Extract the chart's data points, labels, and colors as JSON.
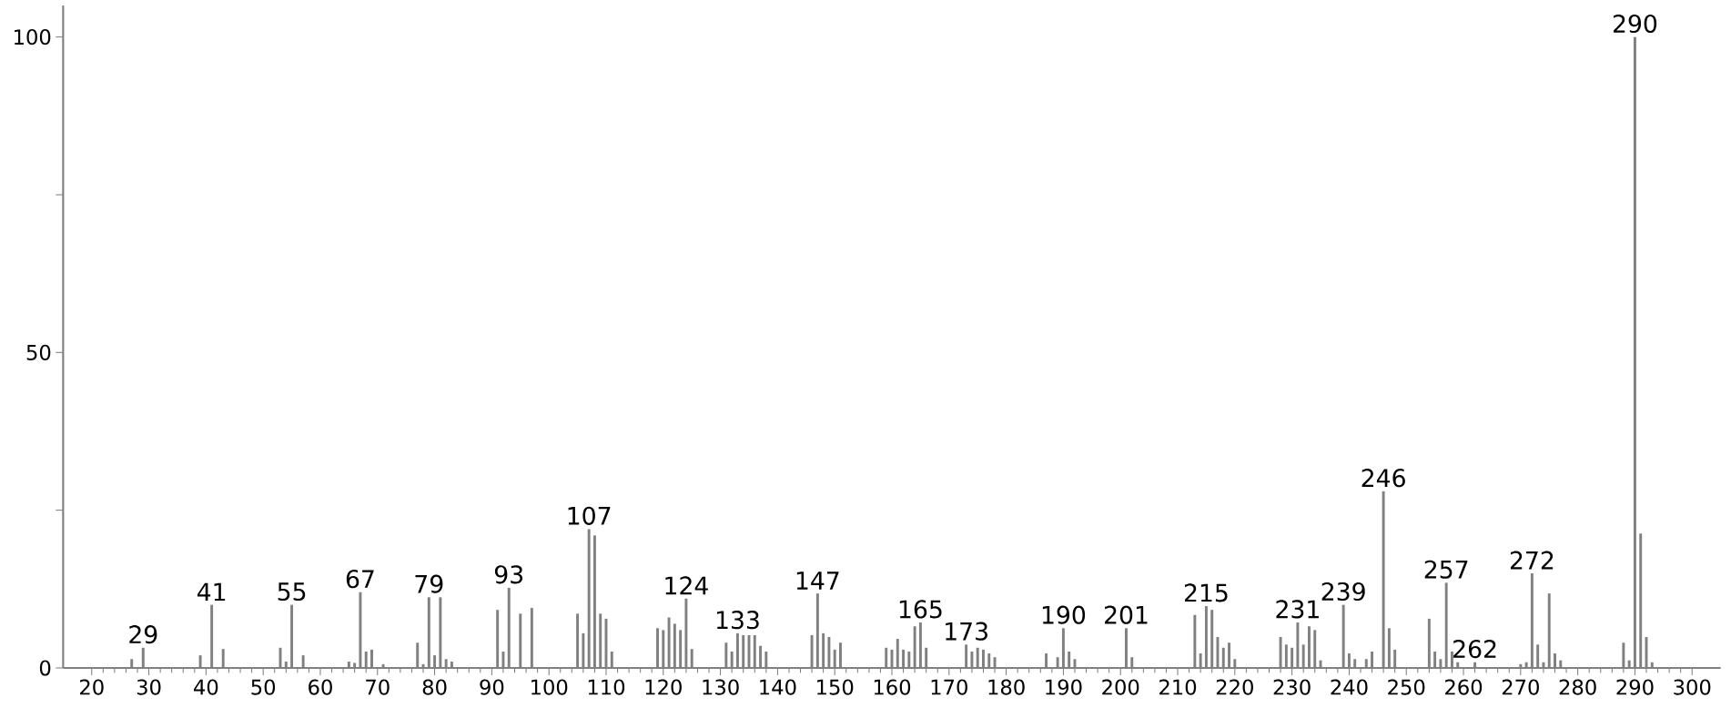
{
  "chart_data": {
    "type": "bar",
    "color": "#808080",
    "x": [
      27,
      29,
      39,
      41,
      43,
      53,
      54,
      55,
      57,
      65,
      66,
      67,
      68,
      69,
      71,
      77,
      78,
      79,
      80,
      81,
      82,
      83,
      91,
      92,
      93,
      95,
      97,
      105,
      106,
      107,
      108,
      109,
      110,
      111,
      119,
      120,
      121,
      122,
      123,
      124,
      125,
      131,
      132,
      133,
      134,
      135,
      136,
      137,
      138,
      146,
      147,
      148,
      149,
      150,
      151,
      159,
      160,
      161,
      162,
      163,
      164,
      165,
      166,
      173,
      174,
      175,
      176,
      177,
      178,
      187,
      189,
      190,
      191,
      192,
      201,
      202,
      213,
      214,
      215,
      216,
      217,
      218,
      219,
      220,
      228,
      229,
      230,
      231,
      232,
      233,
      234,
      235,
      239,
      240,
      241,
      243,
      244,
      246,
      247,
      248,
      254,
      255,
      256,
      257,
      258,
      259,
      262,
      270,
      271,
      272,
      273,
      274,
      275,
      276,
      277,
      288,
      289,
      290,
      291,
      292,
      293
    ],
    "values": [
      1.4,
      3.2,
      2,
      10,
      3,
      3.2,
      1,
      10,
      2,
      1,
      0.8,
      12,
      2.6,
      2.9,
      0.6,
      4,
      0.6,
      11.2,
      2,
      11.2,
      1.4,
      1,
      9.2,
      2.6,
      12.7,
      8.6,
      9.5,
      8.6,
      5.5,
      22,
      21,
      8.6,
      7.8,
      2.6,
      6.3,
      6,
      8,
      7,
      6,
      11,
      3,
      4,
      2.6,
      5.5,
      5.2,
      5.2,
      5.2,
      3.5,
      2.6,
      5.2,
      11.8,
      5.5,
      4.9,
      2.9,
      4,
      3.2,
      2.9,
      4.6,
      2.9,
      2.6,
      6.6,
      7.2,
      3.2,
      3.7,
      2.6,
      3.2,
      2.9,
      2.3,
      1.7,
      2.3,
      1.7,
      6.3,
      2.6,
      1.4,
      6.3,
      1.7,
      8.4,
      2.3,
      9.8,
      9.2,
      4.9,
      3.2,
      4,
      1.4,
      4.9,
      3.7,
      3.2,
      7.2,
      3.7,
      6.6,
      6,
      1.2,
      10,
      2.3,
      1.4,
      1.4,
      2.6,
      28,
      6.3,
      2.9,
      7.8,
      2.6,
      1.4,
      13.5,
      2.6,
      0.9,
      0.9,
      0.6,
      0.9,
      15,
      3.7,
      0.9,
      11.8,
      2.3,
      1.2,
      4,
      1.2,
      100,
      21.3,
      4.9,
      0.9
    ],
    "xlim": [
      15,
      305
    ],
    "ylim": [
      0,
      105
    ],
    "xticks": [
      20,
      30,
      40,
      50,
      60,
      70,
      80,
      90,
      100,
      110,
      120,
      130,
      140,
      150,
      160,
      170,
      180,
      190,
      200,
      210,
      220,
      230,
      240,
      250,
      260,
      270,
      280,
      290,
      300
    ],
    "yticks": [
      0,
      {
        "value": 25,
        "label": null
      },
      50,
      {
        "value": 75,
        "label": null
      },
      100
    ],
    "annotations": [
      {
        "text": "29",
        "x": 29,
        "y": 3.2
      },
      {
        "text": "41",
        "x": 41,
        "y": 10
      },
      {
        "text": "55",
        "x": 55,
        "y": 10
      },
      {
        "text": "67",
        "x": 67,
        "y": 12
      },
      {
        "text": "79",
        "x": 79,
        "y": 11.2
      },
      {
        "text": "93",
        "x": 93,
        "y": 12.7
      },
      {
        "text": "107",
        "x": 107,
        "y": 22
      },
      {
        "text": "124",
        "x": 124,
        "y": 11
      },
      {
        "text": "133",
        "x": 133,
        "y": 5.5
      },
      {
        "text": "147",
        "x": 147,
        "y": 11.8
      },
      {
        "text": "165",
        "x": 165,
        "y": 7.2
      },
      {
        "text": "173",
        "x": 173,
        "y": 3.7
      },
      {
        "text": "190",
        "x": 190,
        "y": 6.3
      },
      {
        "text": "201",
        "x": 201,
        "y": 6.3
      },
      {
        "text": "215",
        "x": 215,
        "y": 9.8
      },
      {
        "text": "231",
        "x": 231,
        "y": 7.2
      },
      {
        "text": "239",
        "x": 239,
        "y": 10
      },
      {
        "text": "246",
        "x": 246,
        "y": 28
      },
      {
        "text": "257",
        "x": 257,
        "y": 13.5
      },
      {
        "text": "262",
        "x": 262,
        "y": 0.9
      },
      {
        "text": "272",
        "x": 272,
        "y": 15
      },
      {
        "text": "290",
        "x": 290,
        "y": 100
      }
    ]
  }
}
